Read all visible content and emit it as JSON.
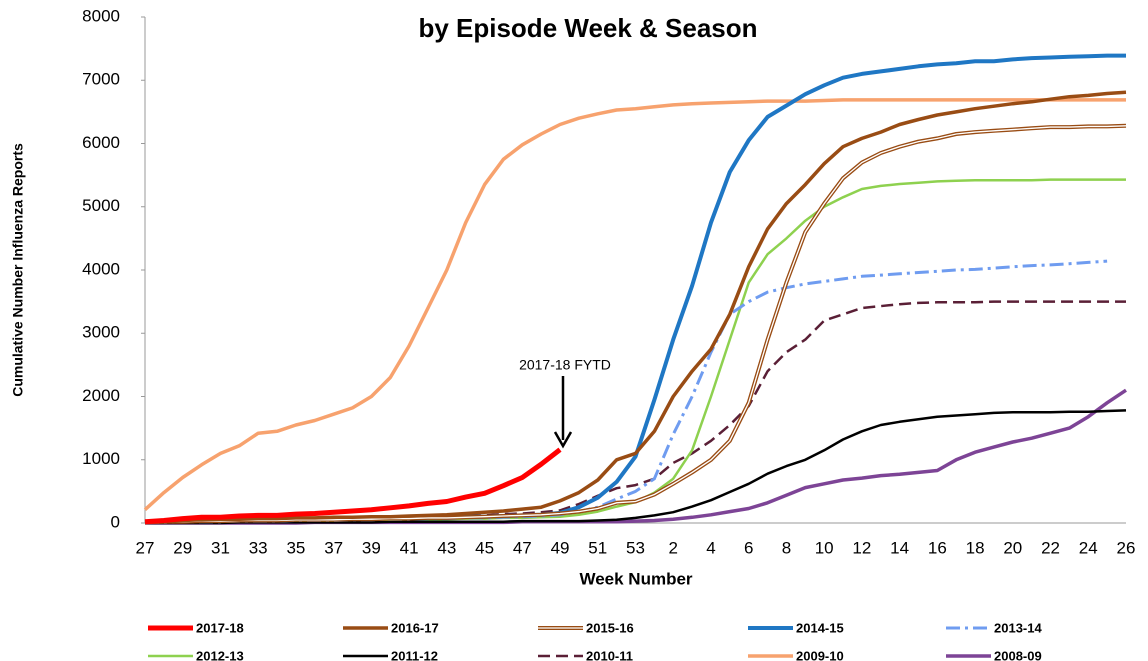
{
  "chart_data": {
    "type": "line",
    "title": "by Episode Week & Season",
    "x_label": "Week Number",
    "y_label": "Cumulative Number Influenza Reports",
    "annotation": "2017-18 FYTD",
    "categories": [
      "27",
      null,
      "29",
      null,
      "31",
      null,
      "33",
      null,
      "35",
      null,
      "37",
      null,
      "39",
      null,
      "41",
      null,
      "43",
      null,
      "45",
      null,
      "47",
      null,
      "49",
      null,
      "51",
      null,
      "53",
      null,
      "2",
      null,
      "4",
      null,
      "6",
      null,
      "8",
      null,
      "10",
      null,
      "12",
      null,
      "14",
      null,
      "16",
      null,
      "18",
      null,
      "20",
      null,
      "22",
      null,
      "24",
      null,
      "26"
    ],
    "ylim": [
      0,
      8000
    ],
    "yticks": [
      0,
      1000,
      2000,
      3000,
      4000,
      5000,
      6000,
      7000,
      8000
    ],
    "grid": false,
    "legend": "bottom",
    "series": [
      {
        "name": "2017-18",
        "color": "#ff0000",
        "line_width": 5,
        "values": [
          20,
          40,
          70,
          90,
          90,
          110,
          120,
          120,
          140,
          150,
          170,
          190,
          210,
          240,
          270,
          310,
          340,
          410,
          470,
          590,
          720,
          930,
          1160,
          null,
          null,
          null,
          null,
          null,
          null,
          null,
          null,
          null,
          null,
          null,
          null,
          null,
          null,
          null,
          null,
          null,
          null,
          null,
          null,
          null,
          null,
          null,
          null,
          null,
          null,
          null,
          null,
          null,
          null
        ]
      },
      {
        "name": "2016-17",
        "color": "#994c14",
        "line_width": 3.5,
        "values": [
          20,
          30,
          40,
          50,
          60,
          60,
          70,
          70,
          80,
          80,
          90,
          90,
          100,
          100,
          110,
          120,
          130,
          150,
          170,
          190,
          220,
          250,
          350,
          480,
          680,
          1000,
          1100,
          1450,
          2000,
          2400,
          2750,
          3300,
          4050,
          4650,
          5050,
          5350,
          5680,
          5950,
          6080,
          6180,
          6300,
          6380,
          6450,
          6500,
          6550,
          6590,
          6630,
          6660,
          6700,
          6740,
          6760,
          6790,
          6810
        ]
      },
      {
        "name": "2015-16",
        "color": "#994c14",
        "line_width": 4,
        "style": "double",
        "values": [
          10,
          20,
          20,
          30,
          30,
          40,
          40,
          40,
          50,
          50,
          50,
          60,
          60,
          70,
          70,
          80,
          80,
          90,
          100,
          110,
          120,
          130,
          150,
          180,
          230,
          320,
          340,
          450,
          620,
          800,
          1000,
          1300,
          1900,
          2900,
          3800,
          4600,
          5050,
          5450,
          5700,
          5850,
          5950,
          6030,
          6080,
          6150,
          6180,
          6200,
          6220,
          6240,
          6260,
          6260,
          6270,
          6270,
          6280
        ]
      },
      {
        "name": "2014-15",
        "color": "#1f77c4",
        "line_width": 4,
        "values": [
          20,
          30,
          40,
          40,
          50,
          50,
          50,
          60,
          60,
          60,
          70,
          70,
          70,
          80,
          80,
          90,
          90,
          100,
          100,
          110,
          120,
          130,
          160,
          250,
          400,
          650,
          1050,
          1950,
          2900,
          3750,
          4750,
          5550,
          6050,
          6420,
          6600,
          6780,
          6920,
          7040,
          7100,
          7140,
          7180,
          7220,
          7250,
          7270,
          7300,
          7300,
          7330,
          7350,
          7360,
          7370,
          7380,
          7390,
          7390
        ]
      },
      {
        "name": "2013-14",
        "color": "#6f9cf0",
        "line_width": 3,
        "dash": "14,5,3,5",
        "values": [
          10,
          10,
          20,
          20,
          20,
          30,
          30,
          30,
          40,
          40,
          40,
          50,
          50,
          60,
          60,
          70,
          70,
          80,
          80,
          90,
          100,
          110,
          130,
          180,
          250,
          380,
          500,
          700,
          1400,
          2000,
          2700,
          3300,
          3500,
          3650,
          3720,
          3780,
          3820,
          3860,
          3900,
          3920,
          3940,
          3960,
          3980,
          4000,
          4010,
          4030,
          4050,
          4070,
          4080,
          4100,
          4120,
          4140,
          null
        ]
      },
      {
        "name": "2012-13",
        "color": "#8ed14f",
        "line_width": 2.5,
        "values": [
          10,
          10,
          20,
          20,
          20,
          30,
          30,
          30,
          40,
          40,
          40,
          50,
          50,
          50,
          60,
          60,
          60,
          70,
          70,
          80,
          80,
          90,
          100,
          130,
          180,
          260,
          330,
          480,
          700,
          1150,
          2000,
          2900,
          3800,
          4250,
          4500,
          4780,
          5000,
          5150,
          5280,
          5330,
          5360,
          5380,
          5400,
          5410,
          5420,
          5420,
          5420,
          5420,
          5430,
          5430,
          5430,
          5430,
          5430
        ]
      },
      {
        "name": "2011-12",
        "color": "#000000",
        "line_width": 2.5,
        "values": [
          0,
          0,
          0,
          0,
          0,
          10,
          10,
          10,
          10,
          10,
          10,
          10,
          10,
          20,
          20,
          20,
          20,
          20,
          20,
          20,
          30,
          30,
          30,
          30,
          40,
          50,
          80,
          120,
          170,
          260,
          360,
          490,
          620,
          780,
          900,
          1000,
          1150,
          1320,
          1450,
          1550,
          1600,
          1640,
          1680,
          1700,
          1720,
          1740,
          1750,
          1750,
          1750,
          1760,
          1760,
          1770,
          1780
        ]
      },
      {
        "name": "2010-11",
        "color": "#5a1f36",
        "line_width": 2.5,
        "dash": "12,6",
        "values": [
          20,
          30,
          30,
          40,
          40,
          50,
          50,
          60,
          60,
          60,
          70,
          70,
          80,
          80,
          90,
          90,
          100,
          110,
          120,
          140,
          150,
          170,
          200,
          300,
          430,
          550,
          600,
          700,
          950,
          1100,
          1300,
          1550,
          1850,
          2400,
          2700,
          2900,
          3200,
          3300,
          3400,
          3430,
          3460,
          3480,
          3490,
          3490,
          3490,
          3500,
          3500,
          3500,
          3500,
          3500,
          3500,
          3500,
          3500
        ]
      },
      {
        "name": "2009-10",
        "color": "#f7a26e",
        "line_width": 3.5,
        "values": [
          210,
          480,
          720,
          920,
          1100,
          1220,
          1420,
          1450,
          1550,
          1620,
          1720,
          1820,
          2000,
          2300,
          2800,
          3400,
          4000,
          4750,
          5350,
          5750,
          5980,
          6150,
          6300,
          6400,
          6470,
          6530,
          6550,
          6580,
          6610,
          6630,
          6640,
          6650,
          6660,
          6670,
          6670,
          6670,
          6680,
          6690,
          6690,
          6690,
          6690,
          6690,
          6690,
          6690,
          6690,
          6690,
          6690,
          6690,
          6690,
          6690,
          6690,
          6690,
          6690
        ]
      },
      {
        "name": "2008-09",
        "color": "#7d4496",
        "line_width": 3.5,
        "values": [
          0,
          0,
          0,
          0,
          0,
          0,
          0,
          0,
          0,
          10,
          10,
          10,
          10,
          10,
          10,
          10,
          10,
          10,
          10,
          10,
          20,
          20,
          20,
          20,
          20,
          20,
          30,
          40,
          60,
          90,
          130,
          180,
          230,
          320,
          440,
          560,
          620,
          680,
          710,
          750,
          770,
          800,
          830,
          1000,
          1120,
          1200,
          1280,
          1340,
          1420,
          1500,
          1680,
          1900,
          2100
        ]
      }
    ]
  }
}
